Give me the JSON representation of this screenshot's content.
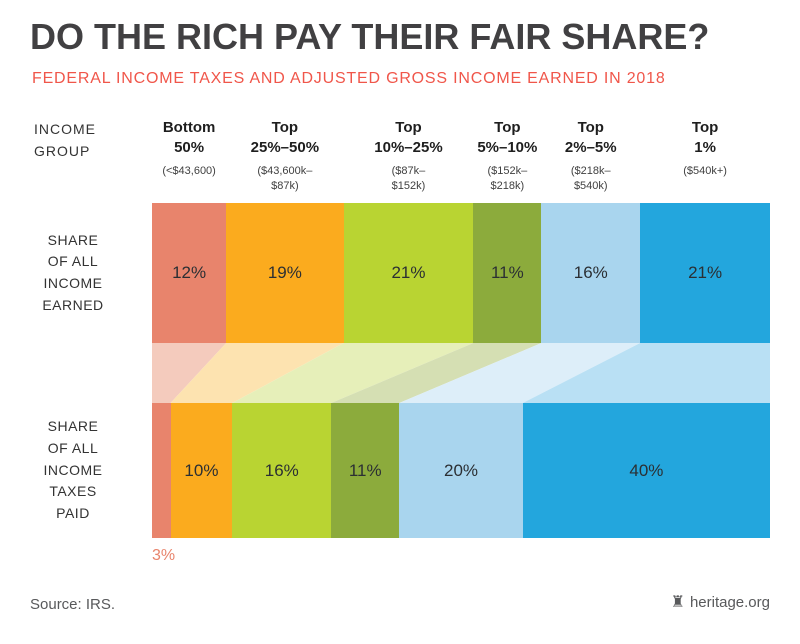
{
  "header": {
    "title": "DO THE RICH PAY THEIR FAIR SHARE?",
    "subtitle": "FEDERAL INCOME TAXES AND ADJUSTED GROSS INCOME EARNED IN 2018"
  },
  "labels": {
    "income_group": "INCOME\nGROUP",
    "row_top": "SHARE\nOF ALL\nINCOME\nEARNED",
    "row_bottom": "SHARE\nOF ALL\nINCOME\nTAXES\nPAID"
  },
  "footer": {
    "source": "Source: IRS.",
    "brand": "heritage.org",
    "logo_glyph": "♜"
  },
  "chart_data": {
    "type": "bar",
    "subtype": "100-percent-stacked-horizontal-with-flow-band",
    "title": "DO THE RICH PAY THEIR FAIR SHARE?",
    "subtitle": "FEDERAL INCOME TAXES AND ADJUSTED GROSS INCOME EARNED IN 2018",
    "total": 100,
    "categories": [
      "Bottom 50%",
      "Top 25%–50%",
      "Top 10%–25%",
      "Top 5%–10%",
      "Top 2%–5%",
      "Top 1%"
    ],
    "groups": [
      {
        "name": "Bottom\n50%",
        "range": "(<$43,600)",
        "color": "#e8846c",
        "flow_color": "#f4cbbd"
      },
      {
        "name": "Top\n25%–50%",
        "range": "($43,600k–\n$87k)",
        "color": "#fbab1e",
        "flow_color": "#fde3b0"
      },
      {
        "name": "Top\n10%–25%",
        "range": "($87k–\n$152k)",
        "color": "#b9d432",
        "flow_color": "#e6efb9"
      },
      {
        "name": "Top\n5%–10%",
        "range": "($152k–\n$218k)",
        "color": "#8cab3c",
        "flow_color": "#d5dfb3"
      },
      {
        "name": "Top\n2%–5%",
        "range": "($218k–\n$540k)",
        "color": "#a9d5ee",
        "flow_color": "#ddeef9"
      },
      {
        "name": "Top\n1%",
        "range": "($540k+)",
        "color": "#23a6dd",
        "flow_color": "#b9e0f4"
      }
    ],
    "rows": [
      {
        "label": "SHARE OF ALL INCOME EARNED",
        "values": [
          12,
          19,
          21,
          11,
          16,
          21
        ],
        "hide_label_indices": []
      },
      {
        "label": "SHARE OF ALL INCOME TAXES PAID",
        "values": [
          3,
          10,
          16,
          11,
          20,
          40
        ],
        "hide_label_indices": [
          0
        ]
      }
    ],
    "outside_label": {
      "text": "3%",
      "color": "#e8846c"
    },
    "legend": "none",
    "grid": false
  }
}
